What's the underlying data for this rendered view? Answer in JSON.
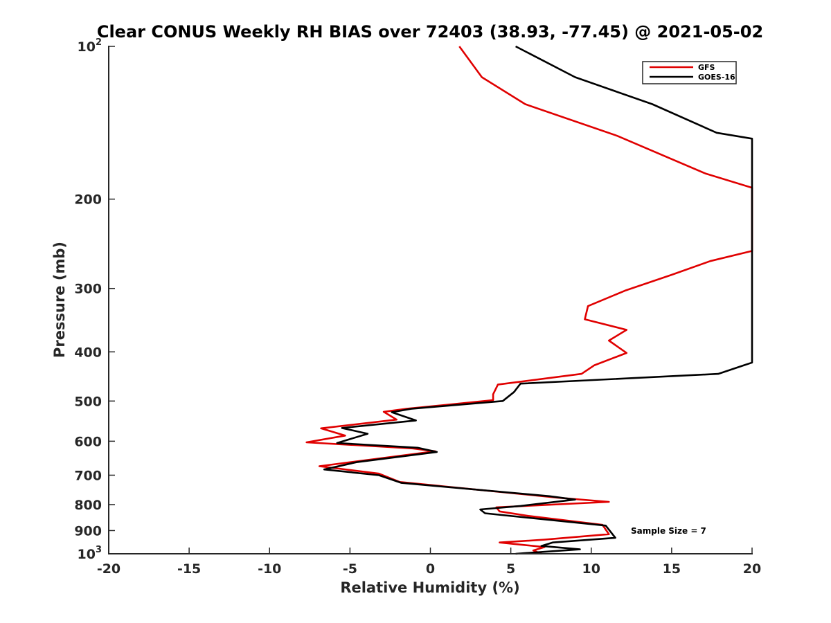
{
  "chart_data": {
    "type": "line",
    "title": "Clear CONUS Weekly RH BIAS over 72403 (38.93, -77.45) @ 2021-05-02",
    "xlabel": "Relative Humidity (%)",
    "ylabel": "Pressure (mb)",
    "xlim": [
      -20,
      20
    ],
    "ylim": [
      100,
      1000
    ],
    "y_scale": "log",
    "y_reversed": true,
    "grid": false,
    "x_ticks": [
      -20,
      -15,
      -10,
      -5,
      0,
      5,
      10,
      15,
      20
    ],
    "x_tick_labels": [
      "-20",
      "-15",
      "-10",
      "-5",
      "0",
      "5",
      "10",
      "15",
      "20"
    ],
    "y_ticks": [
      100,
      200,
      300,
      400,
      500,
      600,
      700,
      800,
      900,
      1000
    ],
    "y_tick_labels": [
      {
        "base": "10",
        "sup": "2"
      },
      {
        "base": "200"
      },
      {
        "base": "300"
      },
      {
        "base": "400"
      },
      {
        "base": "500"
      },
      {
        "base": "600"
      },
      {
        "base": "700"
      },
      {
        "base": "800"
      },
      {
        "base": "900"
      },
      {
        "base": "10",
        "sup": "3"
      }
    ],
    "legend_position": "top-right",
    "annotation": "Sample Size = 7",
    "series": [
      {
        "name": "GFS",
        "color": "#e00000",
        "points": [
          [
            1.8,
            100
          ],
          [
            3.2,
            115
          ],
          [
            5.9,
            130
          ],
          [
            11.6,
            150
          ],
          [
            17.1,
            178
          ],
          [
            20.0,
            190
          ],
          [
            20.0,
            253
          ],
          [
            17.4,
            265
          ],
          [
            15.0,
            282
          ],
          [
            12.1,
            303
          ],
          [
            9.8,
            325
          ],
          [
            9.6,
            345
          ],
          [
            12.2,
            362
          ],
          [
            11.1,
            380
          ],
          [
            12.2,
            402
          ],
          [
            10.2,
            425
          ],
          [
            9.4,
            442
          ],
          [
            4.2,
            464
          ],
          [
            3.9,
            485
          ],
          [
            3.9,
            498
          ],
          [
            -1.5,
            518
          ],
          [
            -2.9,
            525
          ],
          [
            -2.1,
            544
          ],
          [
            -6.8,
            566
          ],
          [
            -5.3,
            585
          ],
          [
            -7.7,
            603
          ],
          [
            -1.1,
            620
          ],
          [
            0.3,
            628
          ],
          [
            -6.9,
            672
          ],
          [
            -3.2,
            695
          ],
          [
            -1.9,
            722
          ],
          [
            7.9,
            775
          ],
          [
            11.1,
            790
          ],
          [
            4.1,
            810
          ],
          [
            4.3,
            825
          ],
          [
            6.1,
            842
          ],
          [
            10.7,
            877
          ],
          [
            11.1,
            915
          ],
          [
            7.1,
            938
          ],
          [
            4.3,
            950
          ],
          [
            7.1,
            970
          ],
          [
            6.4,
            985
          ],
          [
            6.9,
            1000
          ]
        ]
      },
      {
        "name": "GOES-16",
        "color": "#000000",
        "points": [
          [
            5.3,
            100
          ],
          [
            9.0,
            115
          ],
          [
            13.8,
            130
          ],
          [
            17.8,
            148
          ],
          [
            20.0,
            152
          ],
          [
            20.0,
            420
          ],
          [
            19.5,
            425
          ],
          [
            17.9,
            442
          ],
          [
            5.6,
            462
          ],
          [
            5.2,
            480
          ],
          [
            4.5,
            500
          ],
          [
            -1.2,
            518
          ],
          [
            -2.4,
            526
          ],
          [
            -0.9,
            546
          ],
          [
            -5.5,
            565
          ],
          [
            -3.9,
            580
          ],
          [
            -5.8,
            605
          ],
          [
            -0.8,
            618
          ],
          [
            0.4,
            630
          ],
          [
            -4.6,
            660
          ],
          [
            -6.6,
            682
          ],
          [
            -3.2,
            700
          ],
          [
            -1.8,
            725
          ],
          [
            7.4,
            770
          ],
          [
            9.0,
            782
          ],
          [
            5.6,
            805
          ],
          [
            3.1,
            818
          ],
          [
            3.4,
            832
          ],
          [
            10.9,
            880
          ],
          [
            11.5,
            930
          ],
          [
            7.6,
            950
          ],
          [
            6.9,
            965
          ],
          [
            9.3,
            980
          ],
          [
            5.3,
            1000
          ]
        ]
      }
    ]
  }
}
